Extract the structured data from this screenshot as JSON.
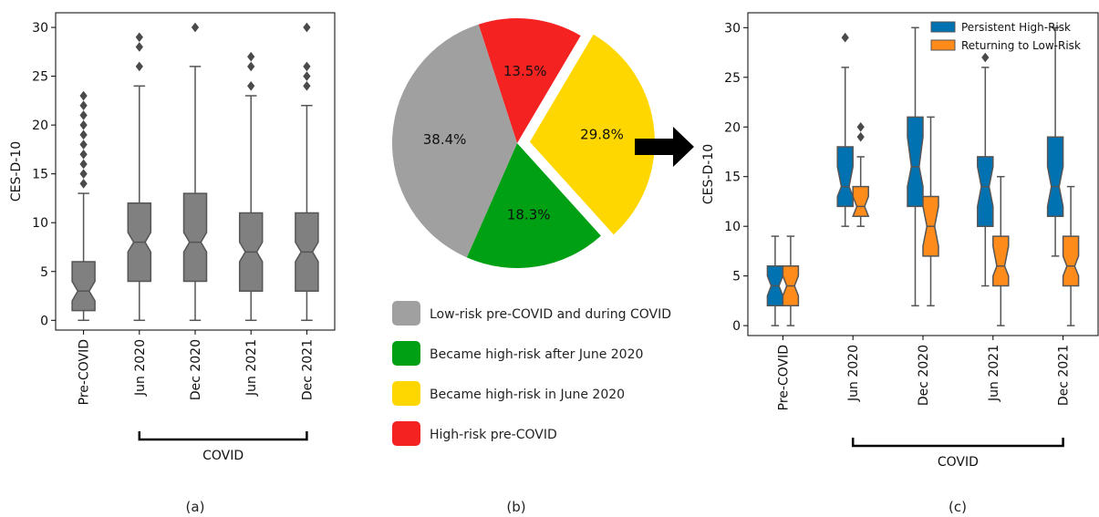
{
  "colors": {
    "gray_box": "#808080",
    "gray_edge": "#555555",
    "blue": "#0072B2",
    "orange": "#FF8C1A",
    "pie_gray": "#A0A0A0",
    "pie_green": "#00A014",
    "pie_yellow": "#FFD700",
    "pie_red": "#F52222",
    "arrow": "#000000"
  },
  "captions": [
    "(a)",
    "(b)",
    "(c)"
  ],
  "chart_data": [
    {
      "type": "box",
      "notched": true,
      "ylabel": "CES-D-10",
      "ylim": [
        -1,
        31.5
      ],
      "yticks": [
        0,
        5,
        10,
        15,
        20,
        25,
        30
      ],
      "categories": [
        "Pre-COVID",
        "Jun 2020",
        "Dec 2020",
        "Jun 2021",
        "Dec 2021"
      ],
      "group_label": "COVID",
      "group_covers": [
        "Jun 2020",
        "Dec 2020",
        "Jun 2021",
        "Dec 2021"
      ],
      "series": [
        {
          "boxes": [
            {
              "min": 0,
              "q1": 1,
              "median": 3,
              "q3": 6,
              "max": 13,
              "notch_low": 2,
              "notch_high": 4,
              "outliers": [
                14,
                15,
                16,
                17,
                18,
                19,
                20,
                21,
                22,
                23
              ]
            },
            {
              "min": 0,
              "q1": 4,
              "median": 8,
              "q3": 12,
              "max": 24,
              "notch_low": 7,
              "notch_high": 9,
              "outliers": [
                26,
                28,
                29
              ]
            },
            {
              "min": 0,
              "q1": 4,
              "median": 8,
              "q3": 13,
              "max": 26,
              "notch_low": 7,
              "notch_high": 9,
              "outliers": [
                30
              ]
            },
            {
              "min": 0,
              "q1": 3,
              "median": 7,
              "q3": 11,
              "max": 23,
              "notch_low": 6,
              "notch_high": 8,
              "outliers": [
                24,
                26,
                27
              ]
            },
            {
              "min": 0,
              "q1": 3,
              "median": 7,
              "q3": 11,
              "max": 22,
              "notch_low": 6,
              "notch_high": 8,
              "outliers": [
                24,
                25,
                26,
                30
              ]
            }
          ]
        }
      ]
    },
    {
      "type": "pie",
      "slices": [
        {
          "label": "Low-risk pre-COVID and during COVID",
          "value": 38.4,
          "display": "38.4%",
          "color_key": "pie_gray",
          "exploded": false
        },
        {
          "label": "Became high-risk after June 2020",
          "value": 18.3,
          "display": "18.3%",
          "color_key": "pie_green",
          "exploded": false
        },
        {
          "label": "Became high-risk in June 2020",
          "value": 29.8,
          "display": "29.8%",
          "color_key": "pie_yellow",
          "exploded": true
        },
        {
          "label": "High-risk pre-COVID",
          "value": 13.5,
          "display": "13.5%",
          "color_key": "pie_red",
          "exploded": false
        }
      ]
    },
    {
      "type": "box",
      "notched": true,
      "ylabel": "CES-D-10",
      "ylim": [
        -1,
        31.5
      ],
      "yticks": [
        0,
        5,
        10,
        15,
        20,
        25,
        30
      ],
      "categories": [
        "Pre-COVID",
        "Jun 2020",
        "Dec 2020",
        "Jun 2021",
        "Dec 2021"
      ],
      "group_label": "COVID",
      "group_covers": [
        "Jun 2020",
        "Dec 2020",
        "Jun 2021",
        "Dec 2021"
      ],
      "legend": {
        "position": "top-right"
      },
      "series": [
        {
          "name": "Persistent High-Risk",
          "color_key": "blue",
          "boxes": [
            {
              "min": 0,
              "q1": 2,
              "median": 4,
              "q3": 6,
              "max": 9,
              "notch_low": 3,
              "notch_high": 5,
              "outliers": []
            },
            {
              "min": 10,
              "q1": 12,
              "median": 14,
              "q3": 18,
              "max": 26,
              "notch_low": 13,
              "notch_high": 16,
              "outliers": [
                29
              ]
            },
            {
              "min": 2,
              "q1": 12,
              "median": 16,
              "q3": 21,
              "max": 30,
              "notch_low": 14,
              "notch_high": 19,
              "outliers": []
            },
            {
              "min": 4,
              "q1": 10,
              "median": 14,
              "q3": 17,
              "max": 26,
              "notch_low": 12,
              "notch_high": 16,
              "outliers": [
                27
              ]
            },
            {
              "min": 7,
              "q1": 11,
              "median": 14,
              "q3": 19,
              "max": 30,
              "notch_low": 12,
              "notch_high": 16,
              "outliers": []
            }
          ]
        },
        {
          "name": "Returning to Low-Risk",
          "color_key": "orange",
          "boxes": [
            {
              "min": 0,
              "q1": 2,
              "median": 4,
              "q3": 6,
              "max": 9,
              "notch_low": 3,
              "notch_high": 5,
              "outliers": []
            },
            {
              "min": 10,
              "q1": 11,
              "median": 12,
              "q3": 14,
              "max": 17,
              "notch_low": 11,
              "notch_high": 13,
              "outliers": [
                19,
                20
              ]
            },
            {
              "min": 2,
              "q1": 7,
              "median": 10,
              "q3": 13,
              "max": 21,
              "notch_low": 8,
              "notch_high": 12,
              "outliers": []
            },
            {
              "min": 0,
              "q1": 4,
              "median": 6,
              "q3": 9,
              "max": 15,
              "notch_low": 5,
              "notch_high": 8,
              "outliers": []
            },
            {
              "min": 0,
              "q1": 4,
              "median": 6,
              "q3": 9,
              "max": 14,
              "notch_low": 5,
              "notch_high": 7,
              "outliers": []
            }
          ]
        }
      ]
    }
  ]
}
